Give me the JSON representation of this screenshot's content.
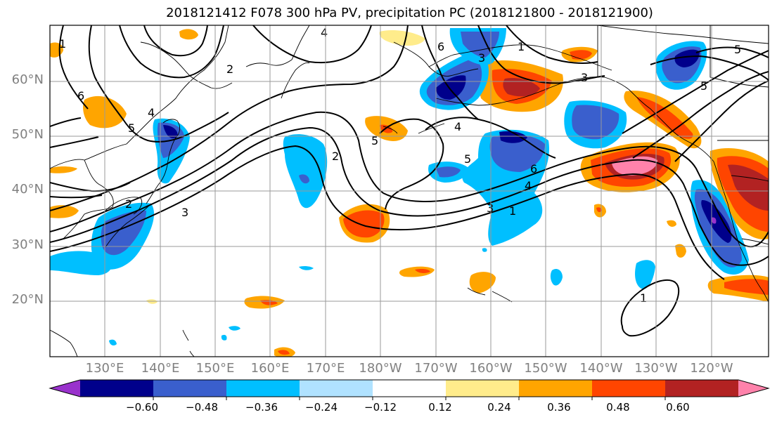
{
  "title": "2018121412 F078 300 hPa PV, precipitation PC (2018121800 - 2018121900)",
  "map": {
    "lat_labels": [
      "60°N",
      "50°N",
      "40°N",
      "30°N",
      "20°N"
    ],
    "lon_labels": [
      "130°E",
      "140°E",
      "150°E",
      "160°E",
      "170°E",
      "180°W",
      "170°W",
      "160°W",
      "150°W",
      "140°W",
      "130°W",
      "120°W"
    ],
    "contour_labels": [
      "1",
      "2",
      "3",
      "4",
      "5",
      "6",
      "4",
      "3",
      "2",
      "5",
      "6",
      "4",
      "5",
      "3",
      "1",
      "2",
      "1",
      "6",
      "5",
      "3",
      "4",
      "5",
      "1"
    ]
  },
  "colorbar": {
    "colors": [
      "#9932cc",
      "#00008b",
      "#3a5fcd",
      "#00bfff",
      "#b0e2ff",
      "#ffffff",
      "#ffec8b",
      "#ffa500",
      "#ff4500",
      "#b22222",
      "#ff82ab"
    ],
    "tick_labels": [
      "−0.60",
      "−0.48",
      "−0.36",
      "−0.24",
      "−0.12",
      "0.12",
      "0.24",
      "0.36",
      "0.48",
      "0.60"
    ]
  }
}
